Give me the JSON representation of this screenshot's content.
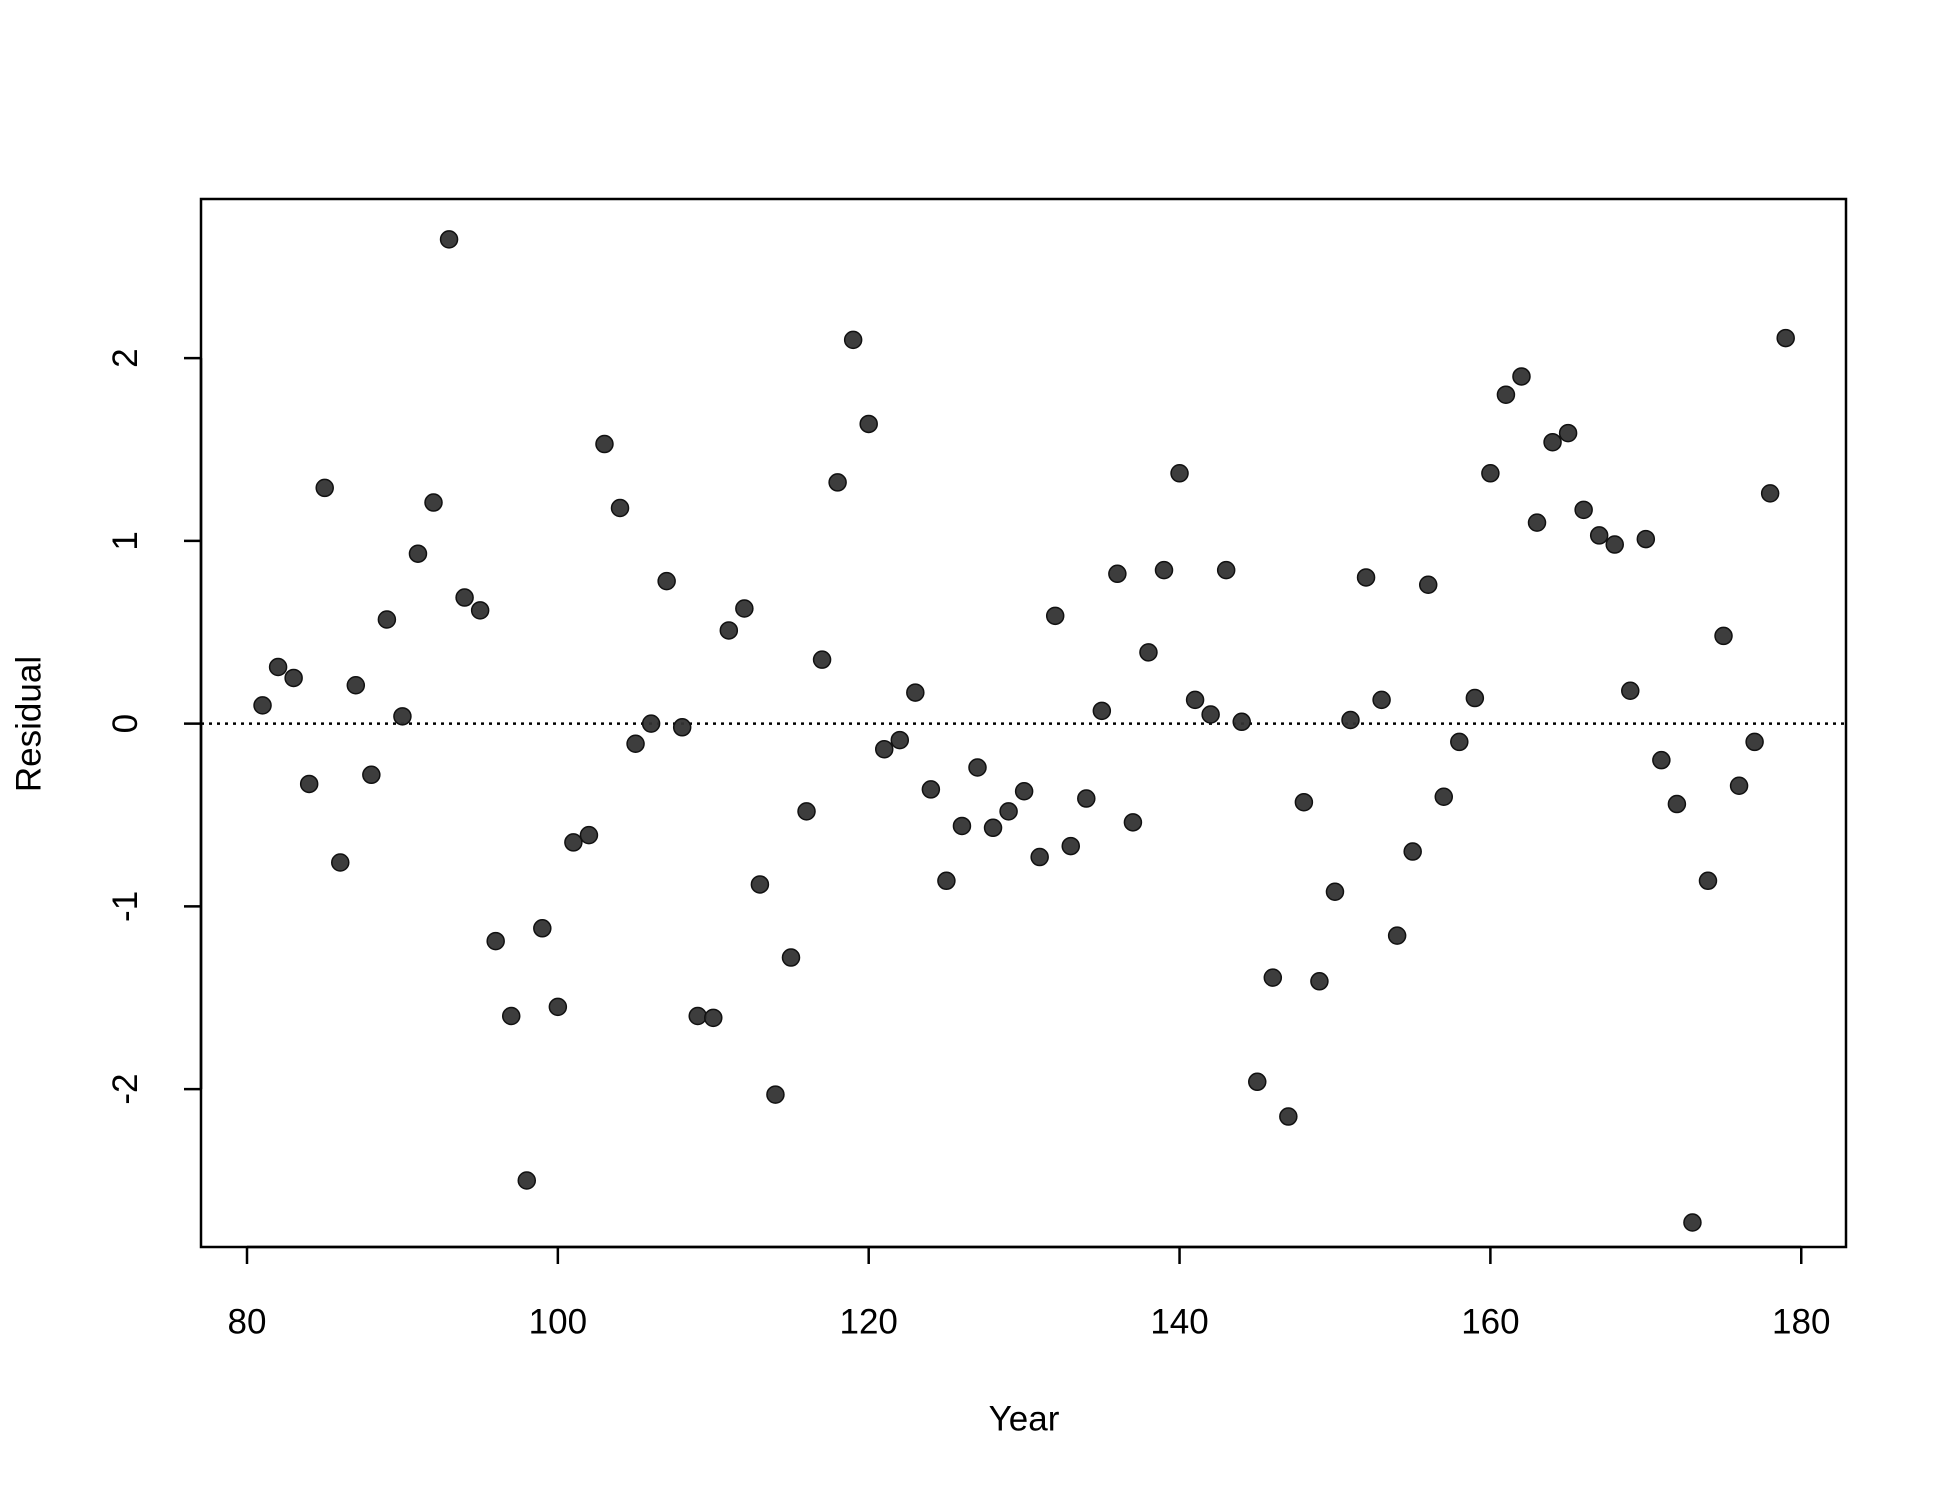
{
  "chart_data": {
    "type": "scatter",
    "x_label": "Year",
    "y_label": "Residual",
    "x": [
      81,
      82,
      83,
      84,
      85,
      86,
      87,
      88,
      89,
      90,
      91,
      92,
      93,
      94,
      95,
      96,
      97,
      98,
      99,
      100,
      101,
      102,
      103,
      104,
      105,
      106,
      107,
      108,
      109,
      110,
      111,
      112,
      113,
      114,
      115,
      116,
      117,
      118,
      119,
      120,
      121,
      122,
      123,
      124,
      125,
      126,
      127,
      128,
      129,
      130,
      131,
      132,
      133,
      134,
      135,
      136,
      137,
      138,
      139,
      140,
      141,
      142,
      143,
      144,
      145,
      146,
      147,
      148,
      149,
      150,
      151,
      152,
      153,
      154,
      155,
      156,
      157,
      158,
      159,
      160,
      161,
      162,
      163,
      164,
      165,
      166,
      167,
      168,
      169,
      170,
      171,
      172,
      173,
      174,
      175,
      176,
      177,
      178,
      179
    ],
    "y": [
      0.1,
      0.31,
      0.25,
      -0.33,
      1.29,
      -0.76,
      0.21,
      -0.28,
      0.57,
      0.04,
      0.93,
      1.21,
      2.65,
      0.69,
      0.62,
      -1.19,
      -1.6,
      -2.5,
      -1.12,
      -1.55,
      -0.65,
      -0.61,
      1.53,
      1.18,
      -0.11,
      0.0,
      0.78,
      -0.02,
      -1.6,
      -1.61,
      0.51,
      0.63,
      -0.88,
      -2.03,
      -1.28,
      -0.48,
      0.35,
      1.32,
      2.1,
      1.64,
      -0.14,
      -0.09,
      0.17,
      -0.36,
      -0.86,
      -0.56,
      -0.24,
      -0.57,
      -0.48,
      -0.37,
      -0.73,
      0.59,
      -0.67,
      -0.41,
      0.07,
      0.82,
      -0.54,
      0.39,
      0.84,
      1.37,
      0.13,
      0.05,
      0.84,
      0.01,
      -1.96,
      -1.39,
      -2.15,
      -0.43,
      -1.41,
      -0.92,
      0.02,
      0.8,
      0.13,
      -1.16,
      -0.7,
      0.76,
      -0.4,
      -0.1,
      0.14,
      1.37,
      1.8,
      1.9,
      1.1,
      1.54,
      1.59,
      1.17,
      1.03,
      0.98,
      0.18,
      1.01,
      -0.2,
      -0.44,
      -2.73,
      -0.86,
      0.48,
      -0.34,
      -0.1,
      1.26,
      2.11
    ],
    "color": "#333333",
    "hline": 0,
    "xlim": [
      77.04,
      182.88
    ],
    "xticks": [
      80,
      100,
      120,
      140,
      160,
      180
    ],
    "ylim": [
      -2.864,
      2.871
    ],
    "yticks": [
      -2,
      -1,
      0,
      1,
      2
    ]
  }
}
